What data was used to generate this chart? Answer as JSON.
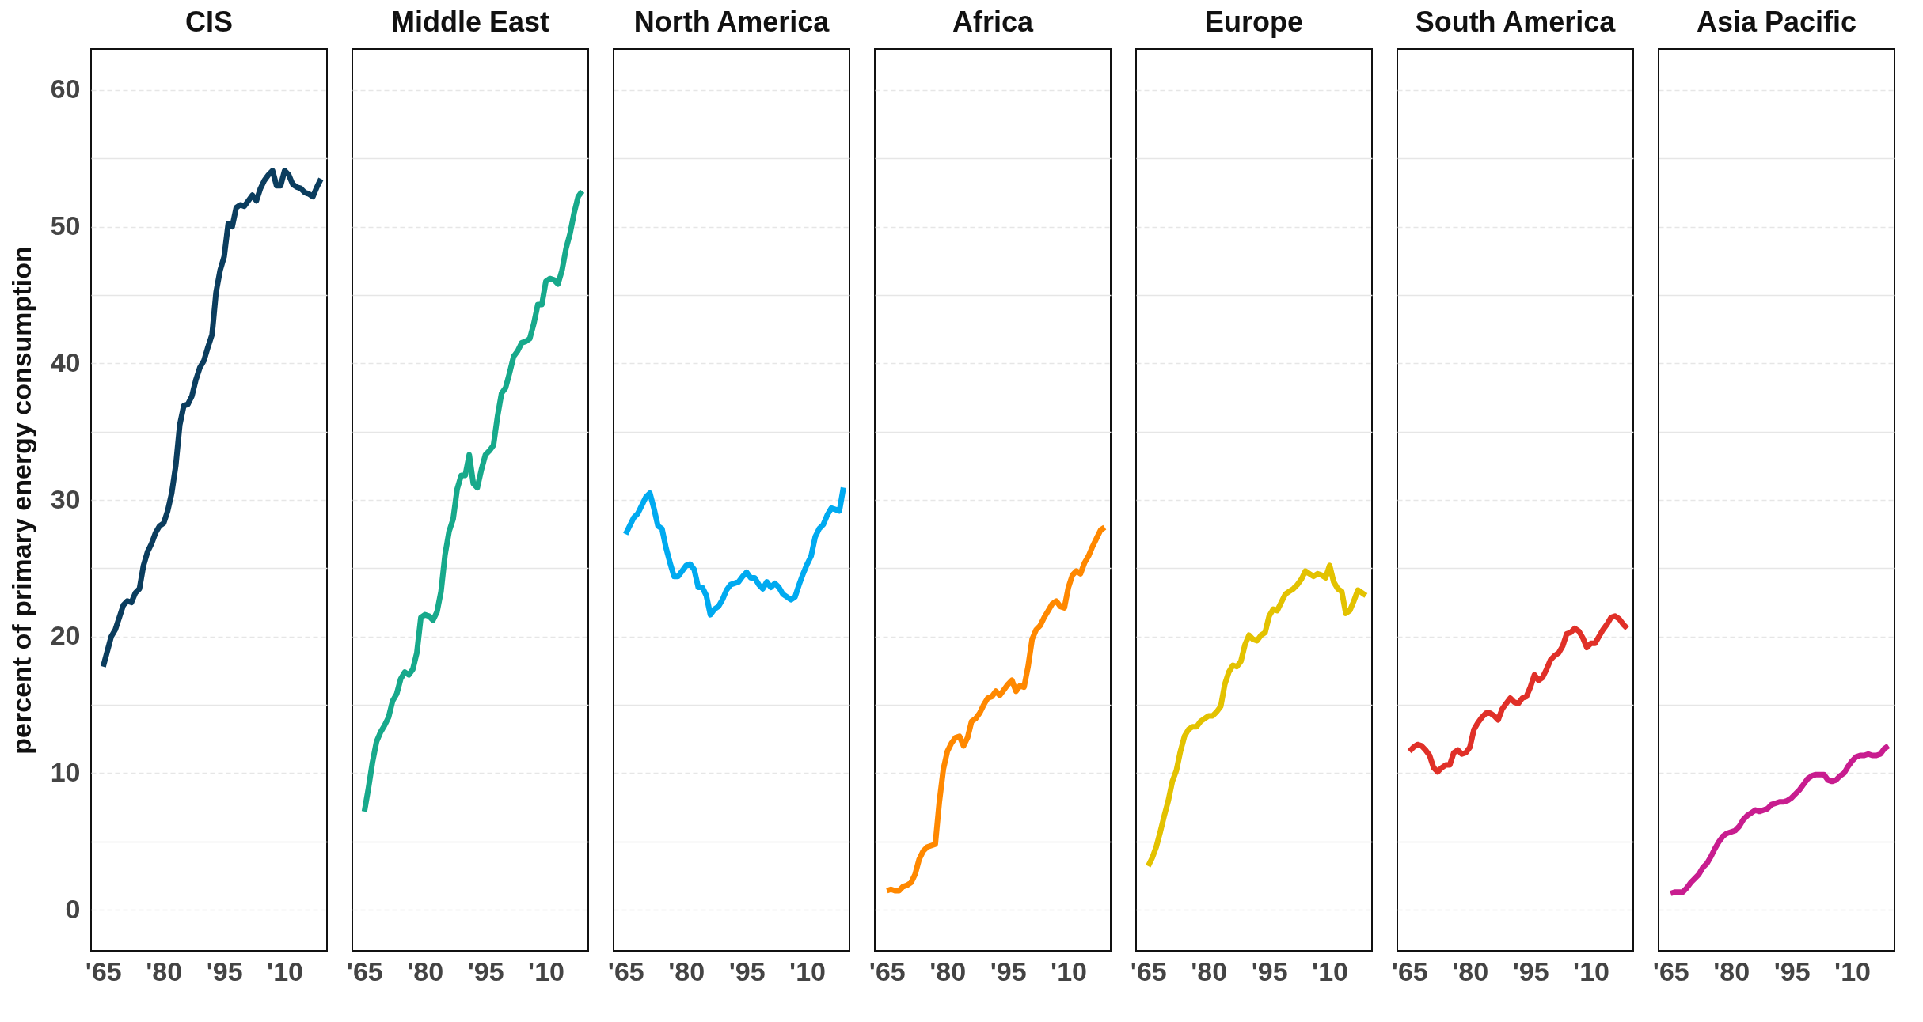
{
  "chart_data": [
    {
      "type": "line",
      "title": "CIS",
      "ylabel": "percent of primary energy consumption",
      "x": [
        1965,
        1966,
        1967,
        1968,
        1969,
        1970,
        1971,
        1972,
        1973,
        1974,
        1975,
        1976,
        1977,
        1978,
        1979,
        1980,
        1981,
        1982,
        1983,
        1984,
        1985,
        1986,
        1987,
        1988,
        1989,
        1990,
        1991,
        1992,
        1993,
        1994,
        1995,
        1996,
        1997,
        1998,
        1999,
        2000,
        2001,
        2002,
        2003,
        2004,
        2005,
        2006,
        2007,
        2008,
        2009,
        2010,
        2011,
        2012,
        2013,
        2014,
        2015,
        2016,
        2017,
        2018,
        2019
      ],
      "series": [
        {
          "color": "#0b3d5e",
          "values": [
            17.8,
            18.9,
            20.0,
            20.5,
            21.4,
            22.3,
            22.6,
            22.5,
            23.2,
            23.5,
            25.2,
            26.2,
            26.8,
            27.6,
            28.1,
            28.3,
            29.2,
            30.5,
            32.5,
            35.5,
            36.9,
            37.0,
            37.6,
            38.8,
            39.7,
            40.2,
            41.2,
            42.1,
            45.2,
            46.8,
            47.8,
            50.2,
            50.0,
            51.4,
            51.6,
            51.5,
            51.9,
            52.3,
            51.9,
            52.8,
            53.4,
            53.8,
            54.1,
            53.0,
            53.0,
            54.1,
            53.8,
            53.1,
            52.9,
            52.8,
            52.5,
            52.4,
            52.2,
            52.9,
            53.5
          ]
        }
      ],
      "xlim": [
        1962,
        2020.5
      ],
      "xticks": [
        {
          "value": 1965,
          "label": "'65"
        },
        {
          "value": 1980,
          "label": "'80"
        },
        {
          "value": 1995,
          "label": "'95"
        },
        {
          "value": 2010,
          "label": "'10"
        }
      ],
      "ylim": [
        -3,
        63
      ],
      "yticks": [
        0,
        {
          "value": 5,
          "label": null
        },
        10,
        {
          "value": 15,
          "label": null
        },
        20,
        {
          "value": 25,
          "label": null
        },
        30,
        {
          "value": 35,
          "label": null
        },
        40,
        {
          "value": 45,
          "label": null
        },
        50,
        {
          "value": 55,
          "label": null
        },
        60
      ],
      "grid": "y",
      "line_style": "solid",
      "marker": "none"
    },
    {
      "type": "line",
      "title": "Middle East",
      "x": [
        1965,
        1966,
        1967,
        1968,
        1969,
        1970,
        1971,
        1972,
        1973,
        1974,
        1975,
        1976,
        1977,
        1978,
        1979,
        1980,
        1981,
        1982,
        1983,
        1984,
        1985,
        1986,
        1987,
        1988,
        1989,
        1990,
        1991,
        1992,
        1993,
        1994,
        1995,
        1996,
        1997,
        1998,
        1999,
        2000,
        2001,
        2002,
        2003,
        2004,
        2005,
        2006,
        2007,
        2008,
        2009,
        2010,
        2011,
        2012,
        2013,
        2014,
        2015,
        2016,
        2017,
        2018,
        2019
      ],
      "series": [
        {
          "color": "#17a98b",
          "values": [
            7.2,
            8.9,
            10.8,
            12.3,
            13.0,
            13.5,
            14.1,
            15.3,
            15.8,
            16.9,
            17.4,
            17.2,
            17.6,
            18.8,
            21.4,
            21.6,
            21.5,
            21.2,
            21.8,
            23.3,
            26.0,
            27.7,
            28.6,
            30.8,
            31.8,
            31.8,
            33.3,
            31.2,
            30.9,
            32.2,
            33.3,
            33.6,
            34.0,
            36.1,
            37.8,
            38.2,
            39.3,
            40.5,
            40.9,
            41.5,
            41.6,
            41.8,
            42.9,
            44.3,
            44.3,
            46.0,
            46.2,
            46.1,
            45.8,
            46.8,
            48.4,
            49.5,
            51.0,
            52.2,
            52.6
          ]
        }
      ],
      "xlim": [
        1962,
        2020.5
      ],
      "xticks": [
        {
          "value": 1965,
          "label": "'65"
        },
        {
          "value": 1980,
          "label": "'80"
        },
        {
          "value": 1995,
          "label": "'95"
        },
        {
          "value": 2010,
          "label": "'10"
        }
      ],
      "ylim": [
        -3,
        63
      ],
      "yticks": [
        0,
        {
          "value": 5,
          "label": null
        },
        10,
        {
          "value": 15,
          "label": null
        },
        20,
        {
          "value": 25,
          "label": null
        },
        30,
        {
          "value": 35,
          "label": null
        },
        40,
        {
          "value": 45,
          "label": null
        },
        50,
        {
          "value": 55,
          "label": null
        },
        60
      ],
      "grid": "y",
      "tick_labels": "x",
      "line_style": "solid",
      "marker": "none"
    },
    {
      "type": "line",
      "title": "North America",
      "x": [
        1965,
        1966,
        1967,
        1968,
        1969,
        1970,
        1971,
        1972,
        1973,
        1974,
        1975,
        1976,
        1977,
        1978,
        1979,
        1980,
        1981,
        1982,
        1983,
        1984,
        1985,
        1986,
        1987,
        1988,
        1989,
        1990,
        1991,
        1992,
        1993,
        1994,
        1995,
        1996,
        1997,
        1998,
        1999,
        2000,
        2001,
        2002,
        2003,
        2004,
        2005,
        2006,
        2007,
        2008,
        2009,
        2010,
        2011,
        2012,
        2013,
        2014,
        2015,
        2016,
        2017,
        2018,
        2019
      ],
      "series": [
        {
          "color": "#00aaf0",
          "values": [
            27.5,
            28.1,
            28.7,
            29.0,
            29.6,
            30.2,
            30.5,
            29.4,
            28.1,
            27.9,
            26.5,
            25.4,
            24.4,
            24.4,
            24.8,
            25.2,
            25.3,
            24.9,
            23.6,
            23.6,
            23.0,
            21.6,
            22.0,
            22.2,
            22.7,
            23.4,
            23.8,
            23.9,
            24.0,
            24.4,
            24.7,
            24.3,
            24.3,
            23.8,
            23.5,
            24.0,
            23.6,
            23.9,
            23.6,
            23.1,
            22.9,
            22.7,
            22.9,
            23.8,
            24.6,
            25.3,
            25.9,
            27.3,
            27.9,
            28.2,
            28.9,
            29.4,
            29.3,
            29.2,
            30.9
          ]
        }
      ],
      "xlim": [
        1962,
        2020.5
      ],
      "xticks": [
        {
          "value": 1965,
          "label": "'65"
        },
        {
          "value": 1980,
          "label": "'80"
        },
        {
          "value": 1995,
          "label": "'95"
        },
        {
          "value": 2010,
          "label": "'10"
        }
      ],
      "ylim": [
        -3,
        63
      ],
      "yticks": [
        0,
        {
          "value": 5,
          "label": null
        },
        10,
        {
          "value": 15,
          "label": null
        },
        20,
        {
          "value": 25,
          "label": null
        },
        30,
        {
          "value": 35,
          "label": null
        },
        40,
        {
          "value": 45,
          "label": null
        },
        50,
        {
          "value": 55,
          "label": null
        },
        60
      ],
      "grid": "y",
      "tick_labels": "x",
      "line_style": "solid",
      "marker": "none"
    },
    {
      "type": "line",
      "title": "Africa",
      "x": [
        1965,
        1966,
        1967,
        1968,
        1969,
        1970,
        1971,
        1972,
        1973,
        1974,
        1975,
        1976,
        1977,
        1978,
        1979,
        1980,
        1981,
        1982,
        1983,
        1984,
        1985,
        1986,
        1987,
        1988,
        1989,
        1990,
        1991,
        1992,
        1993,
        1994,
        1995,
        1996,
        1997,
        1998,
        1999,
        2000,
        2001,
        2002,
        2003,
        2004,
        2005,
        2006,
        2007,
        2008,
        2009,
        2010,
        2011,
        2012,
        2013,
        2014,
        2015,
        2016,
        2017,
        2018,
        2019
      ],
      "series": [
        {
          "color": "#ff8800",
          "values": [
            1.4,
            1.5,
            1.4,
            1.4,
            1.7,
            1.8,
            2.0,
            2.6,
            3.7,
            4.3,
            4.6,
            4.7,
            4.8,
            7.9,
            10.3,
            11.6,
            12.2,
            12.6,
            12.7,
            12.0,
            12.6,
            13.8,
            14.0,
            14.4,
            15.0,
            15.5,
            15.6,
            16.0,
            15.7,
            16.1,
            16.5,
            16.8,
            16.0,
            16.4,
            16.3,
            17.8,
            19.8,
            20.5,
            20.8,
            21.4,
            21.9,
            22.4,
            22.6,
            22.2,
            22.1,
            23.6,
            24.5,
            24.8,
            24.6,
            25.4,
            25.9,
            26.6,
            27.2,
            27.8,
            28.0
          ]
        }
      ],
      "xlim": [
        1962,
        2020.5
      ],
      "xticks": [
        {
          "value": 1965,
          "label": "'65"
        },
        {
          "value": 1980,
          "label": "'80"
        },
        {
          "value": 1995,
          "label": "'95"
        },
        {
          "value": 2010,
          "label": "'10"
        }
      ],
      "ylim": [
        -3,
        63
      ],
      "yticks": [
        0,
        {
          "value": 5,
          "label": null
        },
        10,
        {
          "value": 15,
          "label": null
        },
        20,
        {
          "value": 25,
          "label": null
        },
        30,
        {
          "value": 35,
          "label": null
        },
        40,
        {
          "value": 45,
          "label": null
        },
        50,
        {
          "value": 55,
          "label": null
        },
        60
      ],
      "grid": "y",
      "tick_labels": "x",
      "line_style": "solid",
      "marker": "none"
    },
    {
      "type": "line",
      "title": "Europe",
      "x": [
        1965,
        1966,
        1967,
        1968,
        1969,
        1970,
        1971,
        1972,
        1973,
        1974,
        1975,
        1976,
        1977,
        1978,
        1979,
        1980,
        1981,
        1982,
        1983,
        1984,
        1985,
        1986,
        1987,
        1988,
        1989,
        1990,
        1991,
        1992,
        1993,
        1994,
        1995,
        1996,
        1997,
        1998,
        1999,
        2000,
        2001,
        2002,
        2003,
        2004,
        2005,
        2006,
        2007,
        2008,
        2009,
        2010,
        2011,
        2012,
        2013,
        2014,
        2015,
        2016,
        2017,
        2018,
        2019
      ],
      "series": [
        {
          "color": "#e3c200",
          "values": [
            3.2,
            3.8,
            4.6,
            5.7,
            6.9,
            8.0,
            9.4,
            10.2,
            11.6,
            12.7,
            13.2,
            13.4,
            13.4,
            13.8,
            14.0,
            14.2,
            14.2,
            14.5,
            14.9,
            16.5,
            17.4,
            17.9,
            17.8,
            18.2,
            19.4,
            20.1,
            19.8,
            19.7,
            20.1,
            20.3,
            21.5,
            22.0,
            21.9,
            22.5,
            23.1,
            23.3,
            23.5,
            23.8,
            24.2,
            24.8,
            24.6,
            24.4,
            24.6,
            24.5,
            24.3,
            25.2,
            24.0,
            23.5,
            23.3,
            21.7,
            21.9,
            22.6,
            23.4,
            23.2,
            23.0
          ]
        }
      ],
      "xlim": [
        1962,
        2020.5
      ],
      "xticks": [
        {
          "value": 1965,
          "label": "'65"
        },
        {
          "value": 1980,
          "label": "'80"
        },
        {
          "value": 1995,
          "label": "'95"
        },
        {
          "value": 2010,
          "label": "'10"
        }
      ],
      "ylim": [
        -3,
        63
      ],
      "yticks": [
        0,
        {
          "value": 5,
          "label": null
        },
        10,
        {
          "value": 15,
          "label": null
        },
        20,
        {
          "value": 25,
          "label": null
        },
        30,
        {
          "value": 35,
          "label": null
        },
        40,
        {
          "value": 45,
          "label": null
        },
        50,
        {
          "value": 55,
          "label": null
        },
        60
      ],
      "grid": "y",
      "tick_labels": "x",
      "line_style": "solid",
      "marker": "none"
    },
    {
      "type": "line",
      "title": "South America",
      "x": [
        1965,
        1966,
        1967,
        1968,
        1969,
        1970,
        1971,
        1972,
        1973,
        1974,
        1975,
        1976,
        1977,
        1978,
        1979,
        1980,
        1981,
        1982,
        1983,
        1984,
        1985,
        1986,
        1987,
        1988,
        1989,
        1990,
        1991,
        1992,
        1993,
        1994,
        1995,
        1996,
        1997,
        1998,
        1999,
        2000,
        2001,
        2002,
        2003,
        2004,
        2005,
        2006,
        2007,
        2008,
        2009,
        2010,
        2011,
        2012,
        2013,
        2014,
        2015,
        2016,
        2017,
        2018,
        2019
      ],
      "series": [
        {
          "color": "#e03028",
          "values": [
            11.6,
            11.9,
            12.1,
            12.0,
            11.7,
            11.3,
            10.4,
            10.1,
            10.4,
            10.6,
            10.6,
            11.5,
            11.7,
            11.4,
            11.5,
            11.9,
            13.2,
            13.7,
            14.1,
            14.4,
            14.4,
            14.2,
            13.9,
            14.7,
            15.1,
            15.5,
            15.2,
            15.1,
            15.5,
            15.6,
            16.3,
            17.2,
            16.8,
            17.0,
            17.6,
            18.3,
            18.6,
            18.8,
            19.3,
            20.2,
            20.3,
            20.6,
            20.4,
            19.9,
            19.2,
            19.5,
            19.5,
            20.0,
            20.5,
            20.9,
            21.4,
            21.5,
            21.3,
            20.9,
            20.6
          ]
        }
      ],
      "xlim": [
        1962,
        2020.5
      ],
      "xticks": [
        {
          "value": 1965,
          "label": "'65"
        },
        {
          "value": 1980,
          "label": "'80"
        },
        {
          "value": 1995,
          "label": "'95"
        },
        {
          "value": 2010,
          "label": "'10"
        }
      ],
      "ylim": [
        -3,
        63
      ],
      "yticks": [
        0,
        {
          "value": 5,
          "label": null
        },
        10,
        {
          "value": 15,
          "label": null
        },
        20,
        {
          "value": 25,
          "label": null
        },
        30,
        {
          "value": 35,
          "label": null
        },
        40,
        {
          "value": 45,
          "label": null
        },
        50,
        {
          "value": 55,
          "label": null
        },
        60
      ],
      "grid": "y",
      "tick_labels": "x",
      "line_style": "solid",
      "marker": "none"
    },
    {
      "type": "line",
      "title": "Asia Pacific",
      "x": [
        1965,
        1966,
        1967,
        1968,
        1969,
        1970,
        1971,
        1972,
        1973,
        1974,
        1975,
        1976,
        1977,
        1978,
        1979,
        1980,
        1981,
        1982,
        1983,
        1984,
        1985,
        1986,
        1987,
        1988,
        1989,
        1990,
        1991,
        1992,
        1993,
        1994,
        1995,
        1996,
        1997,
        1998,
        1999,
        2000,
        2001,
        2002,
        2003,
        2004,
        2005,
        2006,
        2007,
        2008,
        2009,
        2010,
        2011,
        2012,
        2013,
        2014,
        2015,
        2016,
        2017,
        2018,
        2019
      ],
      "series": [
        {
          "color": "#c81d8f",
          "values": [
            1.2,
            1.3,
            1.3,
            1.3,
            1.6,
            2.0,
            2.3,
            2.6,
            3.1,
            3.4,
            3.9,
            4.5,
            5.0,
            5.4,
            5.6,
            5.7,
            5.8,
            6.1,
            6.6,
            6.9,
            7.1,
            7.3,
            7.2,
            7.3,
            7.4,
            7.7,
            7.8,
            7.9,
            7.9,
            8.0,
            8.2,
            8.5,
            8.8,
            9.2,
            9.6,
            9.8,
            9.9,
            9.9,
            9.9,
            9.5,
            9.4,
            9.5,
            9.8,
            10.0,
            10.5,
            10.9,
            11.2,
            11.3,
            11.3,
            11.4,
            11.3,
            11.3,
            11.4,
            11.8,
            12.0
          ]
        }
      ],
      "xlim": [
        1962,
        2020.5
      ],
      "xticks": [
        {
          "value": 1965,
          "label": "'65"
        },
        {
          "value": 1980,
          "label": "'80"
        },
        {
          "value": 1995,
          "label": "'95"
        },
        {
          "value": 2010,
          "label": "'10"
        }
      ],
      "ylim": [
        -3,
        63
      ],
      "yticks": [
        0,
        {
          "value": 5,
          "label": null
        },
        10,
        {
          "value": 15,
          "label": null
        },
        20,
        {
          "value": 25,
          "label": null
        },
        30,
        {
          "value": 35,
          "label": null
        },
        40,
        {
          "value": 45,
          "label": null
        },
        50,
        {
          "value": 55,
          "label": null
        },
        60
      ],
      "grid": "y",
      "tick_labels": "x",
      "line_style": "solid",
      "marker": "none"
    }
  ]
}
